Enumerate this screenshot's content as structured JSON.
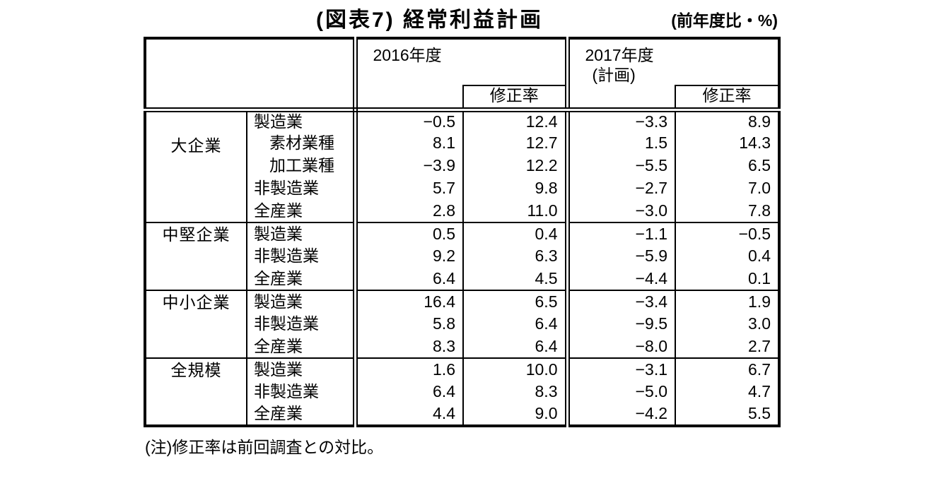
{
  "title": "(図表7) 経常利益計画",
  "unit_label": "(前年度比・%)",
  "footnote": "(注)修正率は前回調査との対比。",
  "table": {
    "headers": {
      "y2016": "2016年度",
      "y2017_line1": "2017年度",
      "y2017_line2": "(計画)",
      "revision": "修正率"
    },
    "groups": [
      {
        "label": "大企業",
        "rows": [
          {
            "industry": "製造業",
            "indent": false,
            "v2016": "−0.5",
            "r2016": "12.4",
            "v2017": "−3.3",
            "r2017": "8.9"
          },
          {
            "industry": "素材業種",
            "indent": true,
            "v2016": "8.1",
            "r2016": "12.7",
            "v2017": "1.5",
            "r2017": "14.3"
          },
          {
            "industry": "加工業種",
            "indent": true,
            "v2016": "−3.9",
            "r2016": "12.2",
            "v2017": "−5.5",
            "r2017": "6.5"
          },
          {
            "industry": "非製造業",
            "indent": false,
            "v2016": "5.7",
            "r2016": "9.8",
            "v2017": "−2.7",
            "r2017": "7.0"
          },
          {
            "industry": "全産業",
            "indent": false,
            "v2016": "2.8",
            "r2016": "11.0",
            "v2017": "−3.0",
            "r2017": "7.8"
          }
        ]
      },
      {
        "label": "中堅企業",
        "rows": [
          {
            "industry": "製造業",
            "indent": false,
            "v2016": "0.5",
            "r2016": "0.4",
            "v2017": "−1.1",
            "r2017": "−0.5"
          },
          {
            "industry": "非製造業",
            "indent": false,
            "v2016": "9.2",
            "r2016": "6.3",
            "v2017": "−5.9",
            "r2017": "0.4"
          },
          {
            "industry": "全産業",
            "indent": false,
            "v2016": "6.4",
            "r2016": "4.5",
            "v2017": "−4.4",
            "r2017": "0.1"
          }
        ]
      },
      {
        "label": "中小企業",
        "rows": [
          {
            "industry": "製造業",
            "indent": false,
            "v2016": "16.4",
            "r2016": "6.5",
            "v2017": "−3.4",
            "r2017": "1.9"
          },
          {
            "industry": "非製造業",
            "indent": false,
            "v2016": "5.8",
            "r2016": "6.4",
            "v2017": "−9.5",
            "r2017": "3.0"
          },
          {
            "industry": "全産業",
            "indent": false,
            "v2016": "8.3",
            "r2016": "6.4",
            "v2017": "−8.0",
            "r2017": "2.7"
          }
        ]
      },
      {
        "label": "全規模",
        "rows": [
          {
            "industry": "製造業",
            "indent": false,
            "v2016": "1.6",
            "r2016": "10.0",
            "v2017": "−3.1",
            "r2017": "6.7"
          },
          {
            "industry": "非製造業",
            "indent": false,
            "v2016": "6.4",
            "r2016": "8.3",
            "v2017": "−5.0",
            "r2017": "4.7"
          },
          {
            "industry": "全産業",
            "indent": false,
            "v2016": "4.4",
            "r2016": "9.0",
            "v2017": "−4.2",
            "r2017": "5.5"
          }
        ]
      }
    ]
  }
}
